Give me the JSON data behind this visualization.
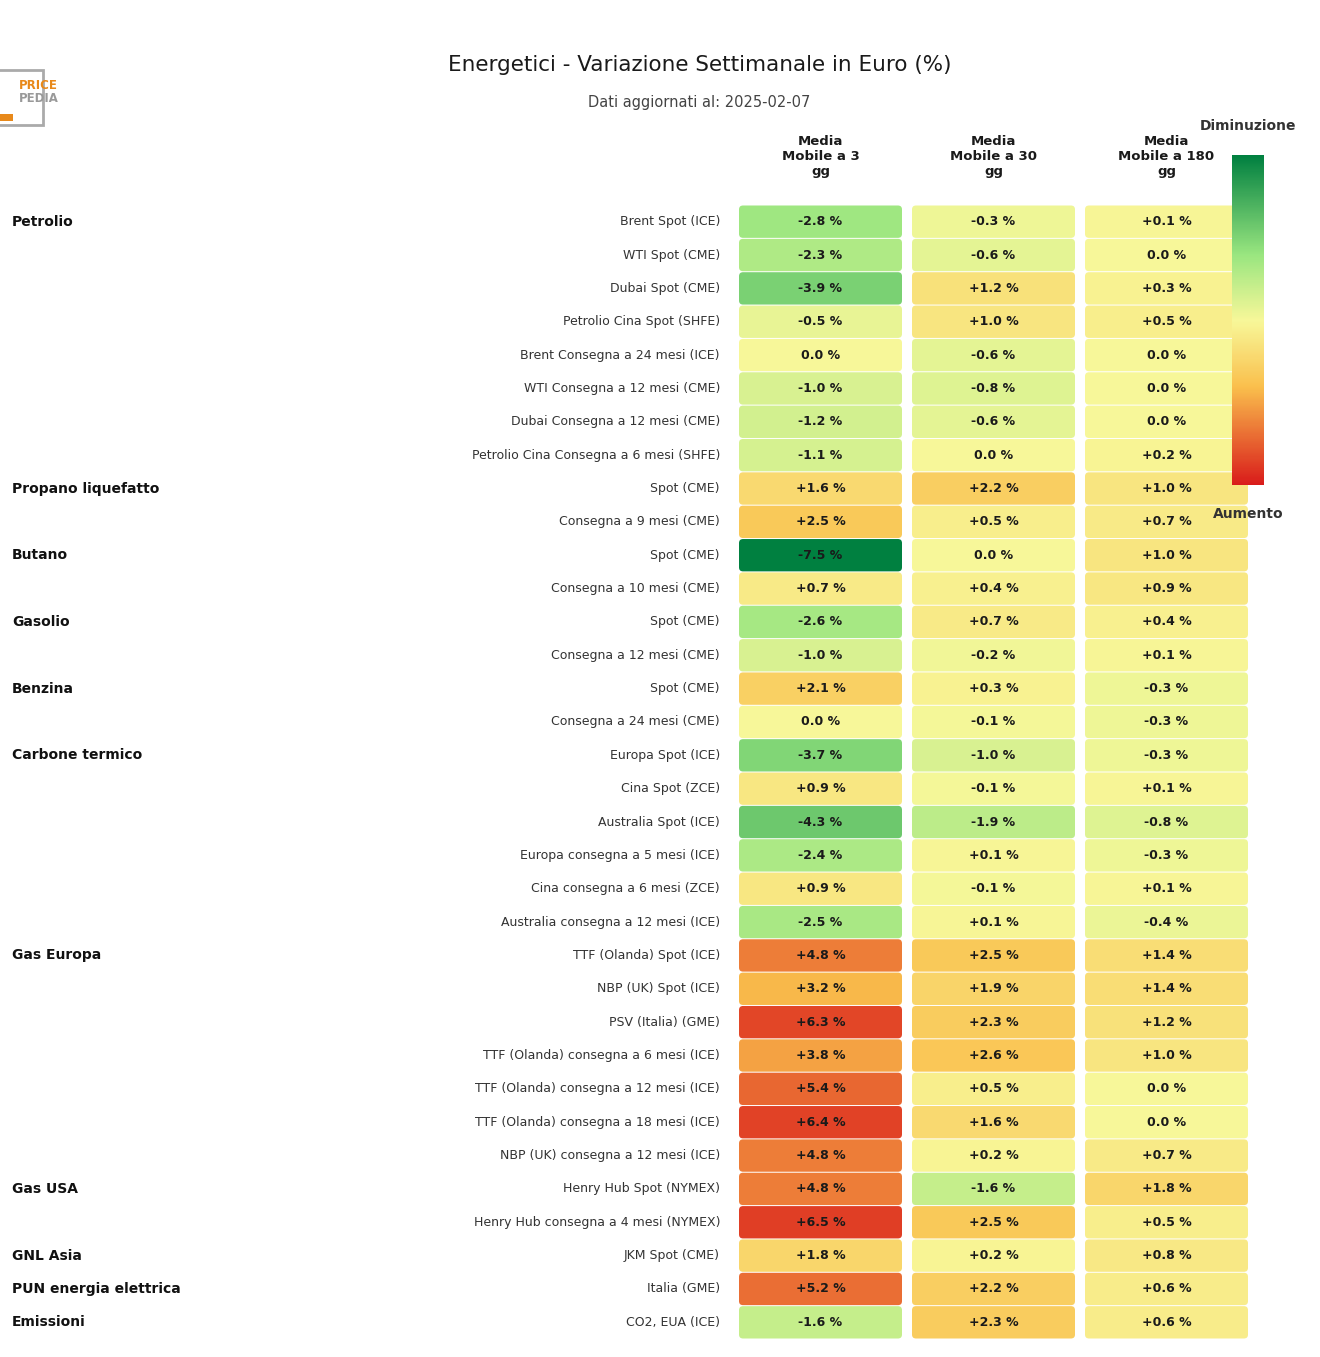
{
  "title": "Energetici - Variazione Settimanale in Euro (%)",
  "subtitle": "Dati aggiornati al: 2025-02-07",
  "col_headers": [
    "Media\nMobile a 3\ngg",
    "Media\nMobile a 30\ngg",
    "Media\nMobile a 180\ngg"
  ],
  "legend_top": "Diminuzione",
  "legend_bottom": "Aumento",
  "rows": [
    {
      "category": "Petrolio",
      "label": "Brent Spot (ICE)",
      "values": [
        -2.8,
        -0.3,
        0.1
      ]
    },
    {
      "category": "",
      "label": "WTI Spot (CME)",
      "values": [
        -2.3,
        -0.6,
        0.0
      ]
    },
    {
      "category": "",
      "label": "Dubai Spot (CME)",
      "values": [
        -3.9,
        1.2,
        0.3
      ]
    },
    {
      "category": "",
      "label": "Petrolio Cina Spot (SHFE)",
      "values": [
        -0.5,
        1.0,
        0.5
      ]
    },
    {
      "category": "",
      "label": "Brent Consegna a 24 mesi (ICE)",
      "values": [
        0.0,
        -0.6,
        0.0
      ]
    },
    {
      "category": "",
      "label": "WTI Consegna a 12 mesi (CME)",
      "values": [
        -1.0,
        -0.8,
        0.0
      ]
    },
    {
      "category": "",
      "label": "Dubai Consegna a 12 mesi (CME)",
      "values": [
        -1.2,
        -0.6,
        0.0
      ]
    },
    {
      "category": "",
      "label": "Petrolio Cina Consegna a 6 mesi (SHFE)",
      "values": [
        -1.1,
        0.0,
        0.2
      ]
    },
    {
      "category": "Propano liquefatto",
      "label": "Spot (CME)",
      "values": [
        1.6,
        2.2,
        1.0
      ]
    },
    {
      "category": "",
      "label": "Consegna a 9 mesi (CME)",
      "values": [
        2.5,
        0.5,
        0.7
      ]
    },
    {
      "category": "Butano",
      "label": "Spot (CME)",
      "values": [
        -7.5,
        0.0,
        1.0
      ]
    },
    {
      "category": "",
      "label": "Consegna a 10 mesi (CME)",
      "values": [
        0.7,
        0.4,
        0.9
      ]
    },
    {
      "category": "Gasolio",
      "label": "Spot (CME)",
      "values": [
        -2.6,
        0.7,
        0.4
      ]
    },
    {
      "category": "",
      "label": "Consegna a 12 mesi (CME)",
      "values": [
        -1.0,
        -0.2,
        0.1
      ]
    },
    {
      "category": "Benzina",
      "label": "Spot (CME)",
      "values": [
        2.1,
        0.3,
        -0.3
      ]
    },
    {
      "category": "",
      "label": "Consegna a 24 mesi (CME)",
      "values": [
        0.0,
        -0.1,
        -0.3
      ]
    },
    {
      "category": "Carbone termico",
      "label": "Europa Spot (ICE)",
      "values": [
        -3.7,
        -1.0,
        -0.3
      ]
    },
    {
      "category": "",
      "label": "Cina Spot (ZCE)",
      "values": [
        0.9,
        -0.1,
        0.1
      ]
    },
    {
      "category": "",
      "label": "Australia Spot (ICE)",
      "values": [
        -4.3,
        -1.9,
        -0.8
      ]
    },
    {
      "category": "",
      "label": "Europa consegna a 5 mesi (ICE)",
      "values": [
        -2.4,
        0.1,
        -0.3
      ]
    },
    {
      "category": "",
      "label": "Cina consegna a 6 mesi (ZCE)",
      "values": [
        0.9,
        -0.1,
        0.1
      ]
    },
    {
      "category": "",
      "label": "Australia consegna a 12 mesi (ICE)",
      "values": [
        -2.5,
        0.1,
        -0.4
      ]
    },
    {
      "category": "Gas Europa",
      "label": "TTF (Olanda) Spot (ICE)",
      "values": [
        4.8,
        2.5,
        1.4
      ]
    },
    {
      "category": "",
      "label": "NBP (UK) Spot (ICE)",
      "values": [
        3.2,
        1.9,
        1.4
      ]
    },
    {
      "category": "",
      "label": "PSV (Italia) (GME)",
      "values": [
        6.3,
        2.3,
        1.2
      ]
    },
    {
      "category": "",
      "label": "TTF (Olanda) consegna a 6 mesi (ICE)",
      "values": [
        3.8,
        2.6,
        1.0
      ]
    },
    {
      "category": "",
      "label": "TTF (Olanda) consegna a 12 mesi (ICE)",
      "values": [
        5.4,
        0.5,
        0.0
      ]
    },
    {
      "category": "",
      "label": "TTF (Olanda) consegna a 18 mesi (ICE)",
      "values": [
        6.4,
        1.6,
        0.0
      ]
    },
    {
      "category": "",
      "label": "NBP (UK) consegna a 12 mesi (ICE)",
      "values": [
        4.8,
        0.2,
        0.7
      ]
    },
    {
      "category": "Gas USA",
      "label": "Henry Hub Spot (NYMEX)",
      "values": [
        4.8,
        -1.6,
        1.8
      ]
    },
    {
      "category": "",
      "label": "Henry Hub consegna a 4 mesi (NYMEX)",
      "values": [
        6.5,
        2.5,
        0.5
      ]
    },
    {
      "category": "GNL Asia",
      "label": "JKM Spot (CME)",
      "values": [
        1.8,
        0.2,
        0.8
      ]
    },
    {
      "category": "PUN energia elettrica",
      "label": "Italia (GME)",
      "values": [
        5.2,
        2.2,
        0.6
      ]
    },
    {
      "category": "Emissioni",
      "label": "CO2, EUA (ICE)",
      "values": [
        -1.6,
        2.3,
        0.6
      ]
    }
  ],
  "background_color": "#ffffff",
  "vmin": -7.5,
  "vmax": 7.5,
  "cmap_colors": [
    [
      0.0,
      [
        0.0,
        0.5,
        0.25
      ]
    ],
    [
      0.3,
      [
        0.6,
        0.9,
        0.5
      ]
    ],
    [
      0.5,
      [
        0.97,
        0.97,
        0.6
      ]
    ],
    [
      0.7,
      [
        0.98,
        0.75,
        0.3
      ]
    ],
    [
      1.0,
      [
        0.85,
        0.1,
        0.1
      ]
    ]
  ]
}
